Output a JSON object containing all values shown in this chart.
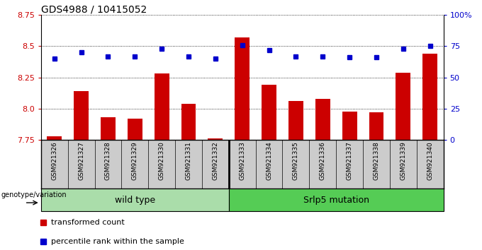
{
  "title": "GDS4988 / 10415052",
  "samples": [
    "GSM921326",
    "GSM921327",
    "GSM921328",
    "GSM921329",
    "GSM921330",
    "GSM921331",
    "GSM921332",
    "GSM921333",
    "GSM921334",
    "GSM921335",
    "GSM921336",
    "GSM921337",
    "GSM921338",
    "GSM921339",
    "GSM921340"
  ],
  "transformed_count": [
    7.78,
    8.14,
    7.93,
    7.92,
    8.28,
    8.04,
    7.76,
    8.57,
    8.19,
    8.06,
    8.08,
    7.98,
    7.97,
    8.29,
    8.44
  ],
  "percentile_rank": [
    65,
    70,
    67,
    67,
    73,
    67,
    65,
    76,
    72,
    67,
    67,
    66,
    66,
    73,
    75
  ],
  "bar_color": "#cc0000",
  "square_color": "#0000cc",
  "ylim_left": [
    7.75,
    8.75
  ],
  "ylim_right": [
    0,
    100
  ],
  "yticks_left": [
    7.75,
    8.0,
    8.25,
    8.5,
    8.75
  ],
  "yticks_right": [
    0,
    25,
    50,
    75,
    100
  ],
  "ytick_labels_right": [
    "0",
    "25",
    "50",
    "75",
    "100%"
  ],
  "group1_label": "wild type",
  "group2_label": "Srlp5 mutation",
  "group1_indices": [
    0,
    1,
    2,
    3,
    4,
    5,
    6
  ],
  "group2_indices": [
    7,
    8,
    9,
    10,
    11,
    12,
    13,
    14
  ],
  "legend_bar_label": "transformed count",
  "legend_square_label": "percentile rank within the sample",
  "genotype_label": "genotype/variation",
  "tick_bg_color": "#cccccc",
  "wt_color": "#aaddaa",
  "mut_color": "#55cc55"
}
